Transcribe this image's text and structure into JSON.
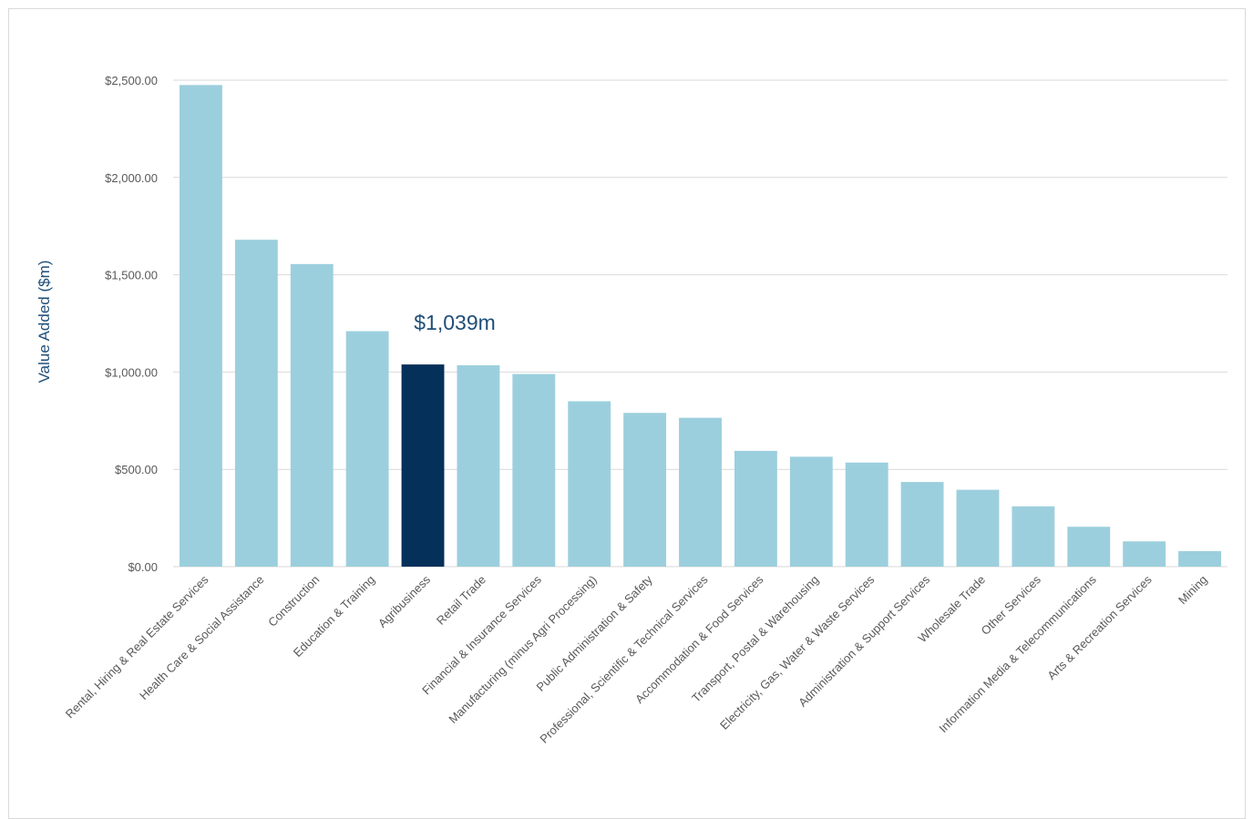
{
  "chart_data": {
    "type": "bar",
    "title": "",
    "xlabel": "",
    "ylabel": "Value Added ($m)",
    "ylim": [
      0,
      2500
    ],
    "yticks": [
      0,
      500,
      1000,
      1500,
      2000,
      2500
    ],
    "ytick_labels": [
      "$0.00",
      "$500.00",
      "$1,000.00",
      "$1,500.00",
      "$2,000.00",
      "$2,500.00"
    ],
    "grid": true,
    "legend": "none",
    "categories": [
      "Rental, Hiring & Real Estate Services",
      "Health Care & Social Assistance",
      "Construction",
      "Education & Training",
      "Agribusiness",
      "Retail Trade",
      "Financial & Insurance Services",
      "Manufacturing (minus Agri Processing)",
      "Public Administration & Safety",
      "Professional, Scientific & Technical Services",
      "Accommodation & Food Services",
      "Transport, Postal & Warehousing",
      "Electricity, Gas, Water & Waste Services",
      "Administration & Support Services",
      "Wholesale Trade",
      "Other Services",
      "Information Media & Telecommunications",
      "Arts & Recreation Services",
      "Mining"
    ],
    "values": [
      2475,
      1680,
      1555,
      1210,
      1039,
      1035,
      990,
      850,
      790,
      765,
      595,
      565,
      535,
      435,
      395,
      310,
      205,
      130,
      80
    ],
    "highlight_index": 4,
    "annotation": "$1,039m",
    "colors": {
      "bar": "#9ccfdd",
      "highlight": "#04305a",
      "grid": "#d9d9d9",
      "axis_text": "#595959",
      "label_text": "#1f4e79"
    }
  }
}
